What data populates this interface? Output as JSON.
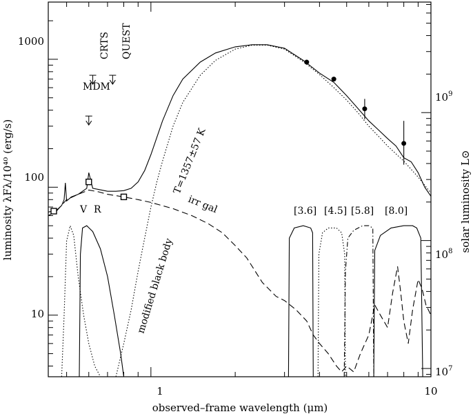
{
  "chart_data": {
    "type": "line",
    "title": "",
    "xlabel": "observed–frame wavelength (μm)",
    "ylabel": "luminosity λFλ/10⁴⁰ (erg/s)",
    "ylabel_right": "solar luminosity L⊙",
    "x_scale": "log",
    "y_scale": "log",
    "xlim": [
      0.43,
      10
    ],
    "ylim": [
      3.3,
      2800
    ],
    "right_ylim": [
      8620000.0,
      7310000000.0
    ],
    "x_ticks": [
      {
        "v": 1,
        "label": "1"
      },
      {
        "v": 10,
        "label": "10"
      }
    ],
    "y_ticks": [
      {
        "v": 10,
        "label": "10"
      },
      {
        "v": 100,
        "label": "100"
      },
      {
        "v": 1000,
        "label": "1000"
      }
    ],
    "right_ticks": [
      {
        "v": 10000000.0,
        "label": "10⁷"
      },
      {
        "v": 100000000.0,
        "label": "10⁸"
      },
      {
        "v": 1000000000.0,
        "label": "10⁹"
      }
    ],
    "grid": false,
    "series": [
      {
        "name": "",
        "style": "solid",
        "points": [
          [
            0.43,
            64
          ],
          [
            0.46,
            66
          ],
          [
            0.48,
            72
          ],
          [
            0.49,
            80
          ],
          [
            0.495,
            108
          ],
          [
            0.5,
            78
          ],
          [
            0.52,
            84
          ],
          [
            0.55,
            88
          ],
          [
            0.57,
            93
          ],
          [
            0.59,
            98
          ],
          [
            0.6,
            130
          ],
          [
            0.62,
            98
          ],
          [
            0.65,
            96
          ],
          [
            0.7,
            93
          ],
          [
            0.75,
            93
          ],
          [
            0.8,
            94
          ],
          [
            0.85,
            98
          ],
          [
            0.9,
            110
          ],
          [
            0.95,
            135
          ],
          [
            1.0,
            180
          ],
          [
            1.1,
            330
          ],
          [
            1.2,
            520
          ],
          [
            1.3,
            700
          ],
          [
            1.5,
            950
          ],
          [
            1.7,
            1120
          ],
          [
            2.0,
            1250
          ],
          [
            2.3,
            1300
          ],
          [
            2.6,
            1300
          ],
          [
            3.0,
            1220
          ],
          [
            3.5,
            980
          ],
          [
            4.0,
            780
          ],
          [
            4.5,
            660
          ],
          [
            5.0,
            520
          ],
          [
            5.5,
            410
          ],
          [
            6.0,
            330
          ],
          [
            6.5,
            280
          ],
          [
            7.0,
            240
          ],
          [
            7.5,
            210
          ],
          [
            8.0,
            170
          ],
          [
            8.5,
            158
          ],
          [
            9.0,
            130
          ],
          [
            9.5,
            100
          ],
          [
            10,
            85
          ]
        ]
      },
      {
        "name": "modified black body",
        "style": "dotted",
        "points": [
          [
            0.75,
            3.3
          ],
          [
            0.8,
            6
          ],
          [
            0.85,
            11
          ],
          [
            0.9,
            22
          ],
          [
            0.95,
            40
          ],
          [
            1.0,
            70
          ],
          [
            1.05,
            110
          ],
          [
            1.1,
            160
          ],
          [
            1.2,
            300
          ],
          [
            1.3,
            460
          ],
          [
            1.5,
            750
          ],
          [
            1.7,
            980
          ],
          [
            2.0,
            1200
          ],
          [
            2.3,
            1290
          ],
          [
            2.6,
            1290
          ],
          [
            3.0,
            1200
          ],
          [
            3.5,
            960
          ],
          [
            4.0,
            760
          ],
          [
            4.5,
            600
          ],
          [
            5.0,
            480
          ],
          [
            5.5,
            380
          ],
          [
            6.0,
            300
          ],
          [
            6.5,
            250
          ],
          [
            7.0,
            210
          ],
          [
            8.0,
            160
          ],
          [
            9.0,
            120
          ],
          [
            10,
            90
          ]
        ]
      },
      {
        "name": "irr gal",
        "style": "dashed",
        "points": [
          [
            0.43,
            60
          ],
          [
            0.46,
            65
          ],
          [
            0.5,
            80
          ],
          [
            0.55,
            88
          ],
          [
            0.6,
            95
          ],
          [
            0.65,
            92
          ],
          [
            0.7,
            88
          ],
          [
            0.8,
            84
          ],
          [
            0.9,
            80
          ],
          [
            1.0,
            76
          ],
          [
            1.2,
            68
          ],
          [
            1.4,
            60
          ],
          [
            1.6,
            52
          ],
          [
            1.8,
            44
          ],
          [
            2.0,
            35
          ],
          [
            2.2,
            28
          ],
          [
            2.5,
            18
          ],
          [
            2.8,
            14
          ],
          [
            3.0,
            13
          ],
          [
            3.3,
            11
          ],
          [
            3.6,
            9
          ],
          [
            3.8,
            7
          ],
          [
            4.0,
            6
          ],
          [
            4.3,
            5
          ],
          [
            4.6,
            4
          ],
          [
            4.8,
            3.6
          ],
          [
            5.0,
            4
          ],
          [
            5.3,
            3.6
          ],
          [
            5.6,
            5
          ],
          [
            6.0,
            7
          ],
          [
            6.3,
            12
          ],
          [
            6.6,
            10
          ],
          [
            7.0,
            8
          ],
          [
            7.3,
            15
          ],
          [
            7.6,
            24
          ],
          [
            7.8,
            15
          ],
          [
            8.0,
            9
          ],
          [
            8.3,
            6
          ],
          [
            8.6,
            11
          ],
          [
            9.0,
            19
          ],
          [
            9.3,
            16
          ],
          [
            9.6,
            12
          ],
          [
            10,
            10
          ]
        ]
      },
      {
        "name": "V",
        "style": "dotted",
        "points": [
          [
            0.48,
            3.3
          ],
          [
            0.49,
            10
          ],
          [
            0.5,
            38
          ],
          [
            0.515,
            50
          ],
          [
            0.53,
            42
          ],
          [
            0.55,
            20
          ],
          [
            0.575,
            10
          ],
          [
            0.6,
            6
          ],
          [
            0.63,
            4
          ],
          [
            0.66,
            3.3
          ]
        ]
      },
      {
        "name": "R",
        "style": "solid",
        "points": [
          [
            0.555,
            3.3
          ],
          [
            0.56,
            30
          ],
          [
            0.57,
            48
          ],
          [
            0.59,
            50
          ],
          [
            0.62,
            45
          ],
          [
            0.66,
            33
          ],
          [
            0.7,
            20
          ],
          [
            0.74,
            10
          ],
          [
            0.78,
            5
          ],
          [
            0.8,
            3.3
          ]
        ]
      },
      {
        "name": "[3.6]",
        "style": "solid",
        "points": [
          [
            3.1,
            3.3
          ],
          [
            3.12,
            40
          ],
          [
            3.25,
            48
          ],
          [
            3.5,
            50
          ],
          [
            3.72,
            48
          ],
          [
            3.78,
            44
          ],
          [
            3.8,
            3.3
          ]
        ]
      },
      {
        "name": "[4.5]",
        "style": "dotted",
        "points": [
          [
            3.95,
            3.3
          ],
          [
            3.98,
            30
          ],
          [
            4.1,
            44
          ],
          [
            4.3,
            48
          ],
          [
            4.6,
            48
          ],
          [
            4.8,
            44
          ],
          [
            4.92,
            30
          ],
          [
            4.95,
            3.3
          ]
        ]
      },
      {
        "name": "[5.8]",
        "style": "dashdot",
        "points": [
          [
            4.9,
            3.3
          ],
          [
            4.95,
            22
          ],
          [
            5.05,
            40
          ],
          [
            5.3,
            46
          ],
          [
            5.7,
            50
          ],
          [
            6.0,
            50
          ],
          [
            6.2,
            48
          ],
          [
            6.25,
            3.3
          ]
        ]
      },
      {
        "name": "[8.0]",
        "style": "solid",
        "points": [
          [
            6.25,
            3.3
          ],
          [
            6.3,
            32
          ],
          [
            6.6,
            42
          ],
          [
            7.2,
            48
          ],
          [
            8.0,
            50
          ],
          [
            8.6,
            50
          ],
          [
            8.9,
            48
          ],
          [
            9.2,
            40
          ],
          [
            9.35,
            3.3
          ]
        ]
      }
    ],
    "photometry_filled": [
      {
        "x": 3.6,
        "y": 950
      },
      {
        "x": 4.5,
        "y": 700
      },
      {
        "x": 5.8,
        "y": 410,
        "err_lo": 340,
        "err_hi": 490
      },
      {
        "x": 8.0,
        "y": 220,
        "err_lo": 150,
        "err_hi": 330
      }
    ],
    "photometry_open": [
      {
        "x": 0.45,
        "y": 65
      },
      {
        "x": 0.6,
        "y": 110
      },
      {
        "x": 0.8,
        "y": 84
      }
    ],
    "upper_limits": [
      {
        "name": "CRTS",
        "x": 0.62,
        "y": 750
      },
      {
        "name": "QUEST",
        "x": 0.73,
        "y": 750
      },
      {
        "name": "MDM",
        "x": 0.6,
        "y": 360
      }
    ],
    "annotations": {
      "temp": "T=1357±57 K",
      "modified_black_body": "modified black body",
      "irr_gal": "irr gal",
      "V": "V",
      "R": "R",
      "b36": "[3.6]",
      "b45": "[4.5]",
      "b58": "[5.8]",
      "b80": "[8.0]",
      "crts": "CRTS",
      "quest": "QUEST",
      "mdm": "MDM"
    }
  }
}
